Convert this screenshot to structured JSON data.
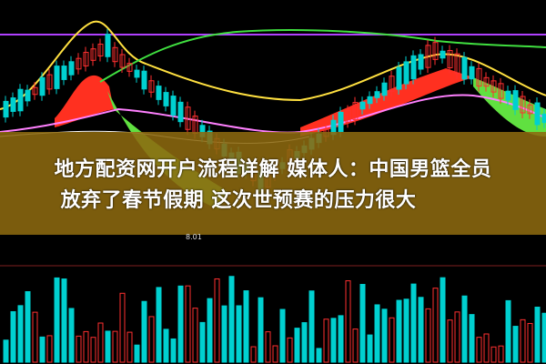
{
  "headline": {
    "line1": "地方配资网开户流程详解 媒体人：中国男篮全员",
    "line2": "放弃了春节假期 这次世预赛的压力很大"
  },
  "chart": {
    "price_label": "8.01",
    "colors": {
      "up": "#ff3030",
      "down": "#00d0d0",
      "bull_fill": "#ff3020",
      "bear_fill": "#60e040",
      "ma_yellow": "#ffe040",
      "ma_green": "#40e040",
      "ma_purple": "#b040ff",
      "ma_pink": "#ff80ff",
      "banner": "#8c690f"
    }
  }
}
